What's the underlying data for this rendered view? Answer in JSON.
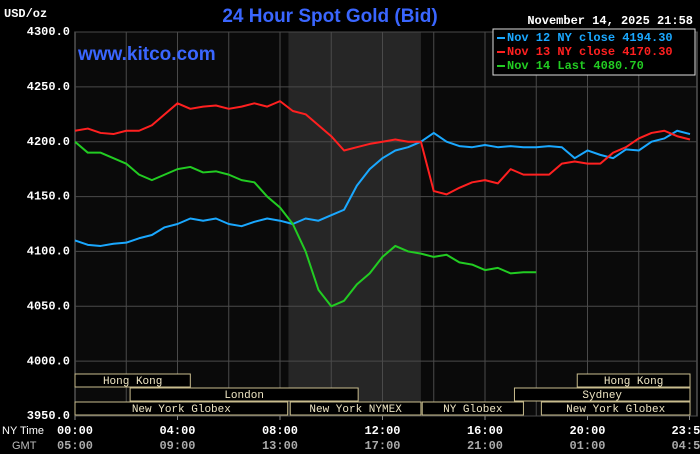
{
  "chart_data": {
    "type": "line",
    "title": "24 Hour Spot Gold (Bid)",
    "timestamp": "November 14, 2025 21:58",
    "watermark": "www.kitco.com",
    "y_label": "USD/oz",
    "x_label": "NY Time",
    "x2_label": "GMT",
    "background": "#000000",
    "grid": true,
    "legend": "top-right",
    "shaded_range": [
      8.33,
      13.5
    ],
    "xlim": [
      0,
      24
    ],
    "ylim": [
      3950,
      4300
    ],
    "xticks": [
      {
        "value": 0,
        "label": "00:00"
      },
      {
        "value": 4,
        "label": "04:00"
      },
      {
        "value": 8,
        "label": "08:00"
      },
      {
        "value": 12,
        "label": "12:00"
      },
      {
        "value": 16,
        "label": "16:00"
      },
      {
        "value": 20,
        "label": "20:00"
      },
      {
        "value": 23.98,
        "label": "23:59"
      }
    ],
    "x2ticks": [
      {
        "value": 0,
        "label": "05:00"
      },
      {
        "value": 4,
        "label": "09:00"
      },
      {
        "value": 8,
        "label": "13:00"
      },
      {
        "value": 12,
        "label": "17:00"
      },
      {
        "value": 16,
        "label": "21:00"
      },
      {
        "value": 20,
        "label": "01:00"
      },
      {
        "value": 23.98,
        "label": "04:59"
      }
    ],
    "yticks": [
      {
        "value": 3950,
        "label": "3950.0"
      },
      {
        "value": 4000,
        "label": "4000.0"
      },
      {
        "value": 4050,
        "label": "4050.0"
      },
      {
        "value": 4100,
        "label": "4100.0"
      },
      {
        "value": 4150,
        "label": "4150.0"
      },
      {
        "value": 4200,
        "label": "4200.0"
      },
      {
        "value": 4250,
        "label": "4250.0"
      },
      {
        "value": 4300,
        "label": "4300.0"
      }
    ],
    "session_rows": [
      [
        {
          "label": "Hong Kong",
          "start": 0,
          "end": 4.5
        },
        {
          "label": "Hong Kong",
          "start": 19.6,
          "end": 24
        }
      ],
      [
        {
          "label": "London",
          "start": 2.15,
          "end": 11.05
        },
        {
          "label": "Sydney",
          "start": 17.15,
          "end": 24
        }
      ],
      [
        {
          "label": "New York Globex",
          "start": 0,
          "end": 8.3
        },
        {
          "label": "New York NYMEX",
          "start": 8.4,
          "end": 13.5
        },
        {
          "label": "NY Globex",
          "start": 13.55,
          "end": 17.5
        },
        {
          "label": "New York Globex",
          "start": 18.2,
          "end": 24
        }
      ]
    ],
    "x": [
      0,
      0.5,
      1,
      1.5,
      2,
      2.5,
      3,
      3.5,
      4,
      4.5,
      5,
      5.5,
      6,
      6.5,
      7,
      7.5,
      8,
      8.5,
      9,
      9.5,
      10,
      10.5,
      11,
      11.5,
      12,
      12.5,
      13,
      13.5,
      14,
      14.5,
      15,
      15.5,
      16,
      16.5,
      17,
      17.5,
      18,
      18.5,
      19,
      19.5,
      20,
      20.5,
      21,
      21.5,
      22,
      22.5,
      23,
      23.5,
      24
    ],
    "series": [
      {
        "name": "Nov 12 NY close 4194.30",
        "color": "#1aa8ff",
        "values": [
          4110,
          4106,
          4105,
          4107,
          4108,
          4112,
          4115,
          4122,
          4125,
          4130,
          4128,
          4130,
          4125,
          4123,
          4127,
          4130,
          4128,
          4125,
          4130,
          4128,
          4133,
          4138,
          4160,
          4175,
          4185,
          4192,
          4195,
          4200,
          4208,
          4200,
          4196,
          4195,
          4197,
          4195,
          4196,
          4195,
          4195,
          4196,
          4195,
          4185,
          4192,
          4188,
          4185,
          4193,
          4192,
          4200,
          4203,
          4210,
          4207
        ]
      },
      {
        "name": "Nov 13 NY close 4170.30",
        "color": "#ff2020",
        "values": [
          4210,
          4212,
          4208,
          4207,
          4210,
          4210,
          4215,
          4225,
          4235,
          4230,
          4232,
          4233,
          4230,
          4232,
          4235,
          4232,
          4237,
          4228,
          4225,
          4215,
          4205,
          4192,
          4195,
          4198,
          4200,
          4202,
          4200,
          4200,
          4155,
          4152,
          4158,
          4163,
          4165,
          4162,
          4175,
          4170,
          4170,
          4170,
          4180,
          4182,
          4180,
          4180,
          4190,
          4195,
          4203,
          4208,
          4210,
          4205,
          4202
        ]
      },
      {
        "name": "Nov 14 Last 4080.70",
        "color": "#22cc22",
        "values": [
          4200,
          4190,
          4190,
          4185,
          4180,
          4170,
          4165,
          4170,
          4175,
          4177,
          4172,
          4173,
          4170,
          4165,
          4163,
          4150,
          4140,
          4125,
          4100,
          4065,
          4050,
          4055,
          4070,
          4080,
          4095,
          4105,
          4100,
          4098,
          4095,
          4097,
          4090,
          4088,
          4083,
          4085,
          4080,
          4081,
          4081,
          null,
          null,
          null,
          null,
          null,
          null,
          null,
          null,
          null,
          null,
          null,
          null
        ]
      }
    ]
  }
}
